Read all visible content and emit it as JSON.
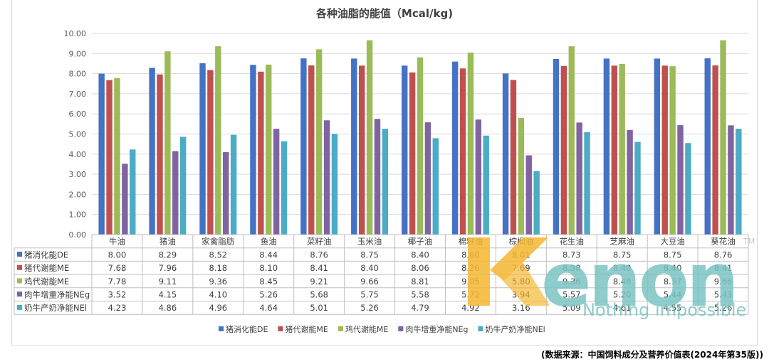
{
  "chart_data": {
    "type": "bar",
    "title": "各种油脂的能值（Mcal/kg)",
    "categories": [
      "牛油",
      "猪油",
      "家禽脂肪",
      "鱼油",
      "菜籽油",
      "玉米油",
      "椰子油",
      "棉籽油",
      "棕榈油",
      "花生油",
      "芝麻油",
      "大豆油",
      "葵花油"
    ],
    "ylim": [
      0,
      10
    ],
    "yticks": [
      "0.00",
      "1.00",
      "2.00",
      "3.00",
      "4.00",
      "5.00",
      "6.00",
      "7.00",
      "8.00",
      "9.00",
      "10.00"
    ],
    "grid": true,
    "legend_position": "bottom",
    "series": [
      {
        "name": "猪消化能DE",
        "color": "#4472c4",
        "values": [
          8.0,
          8.29,
          8.52,
          8.44,
          8.76,
          8.75,
          8.4,
          8.6,
          8.01,
          8.73,
          8.75,
          8.75,
          8.76
        ],
        "labels": [
          "8.00",
          "8.29",
          "8.52",
          "8.44",
          "8.76",
          "8.75",
          "8.40",
          "8.60",
          "8.01",
          "8.73",
          "8.75",
          "8.75",
          "8.76"
        ]
      },
      {
        "name": "猪代谢能ME",
        "color": "#c0504d",
        "values": [
          7.68,
          7.96,
          8.18,
          8.1,
          8.41,
          8.4,
          8.06,
          8.26,
          7.69,
          8.38,
          8.4,
          8.4,
          8.41
        ],
        "labels": [
          "7.68",
          "7.96",
          "8.18",
          "8.10",
          "8.41",
          "8.40",
          "8.06",
          "8.26",
          "7.69",
          "8.38",
          "8.40",
          "8.40",
          "8.41"
        ]
      },
      {
        "name": "鸡代谢能ME",
        "color": "#9bbb59",
        "values": [
          7.78,
          9.11,
          9.36,
          8.45,
          9.21,
          9.66,
          8.81,
          9.05,
          5.8,
          9.36,
          8.48,
          8.37,
          9.66
        ],
        "labels": [
          "7.78",
          "9.11",
          "9.36",
          "8.45",
          "9.21",
          "9.66",
          "8.81",
          "9.05",
          "5.80",
          "9.36",
          "8.48",
          "8.37",
          "9.66"
        ]
      },
      {
        "name": "肉牛增重净能NEg",
        "color": "#8064a2",
        "values": [
          3.52,
          4.15,
          4.1,
          5.26,
          5.68,
          5.75,
          5.58,
          5.72,
          3.94,
          5.57,
          5.2,
          5.44,
          5.43
        ],
        "labels": [
          "3.52",
          "4.15",
          "4.10",
          "5.26",
          "5.68",
          "5.75",
          "5.58",
          "5.72",
          "3.94",
          "5.57",
          "5.20",
          "5.44",
          "5.43"
        ]
      },
      {
        "name": "奶牛产奶净能NEl",
        "color": "#4bacc6",
        "values": [
          4.23,
          4.86,
          4.96,
          4.64,
          5.01,
          5.26,
          4.79,
          4.92,
          3.16,
          5.09,
          4.61,
          4.55,
          5.26
        ],
        "labels": [
          "4.23",
          "4.86",
          "4.96",
          "4.64",
          "5.01",
          "5.26",
          "4.79",
          "4.92",
          "3.16",
          "5.09",
          "4.61",
          "4.55",
          "5.26"
        ]
      }
    ]
  },
  "source_note": "(数据来源：中国饲料成分及营养价值表(2024年第35版))",
  "watermark": {
    "brand": "Kenon",
    "tagline": "Nothing impossible",
    "mark": "TM",
    "colors": {
      "k": "#f5b731",
      "text": "#7cc4c4"
    }
  }
}
